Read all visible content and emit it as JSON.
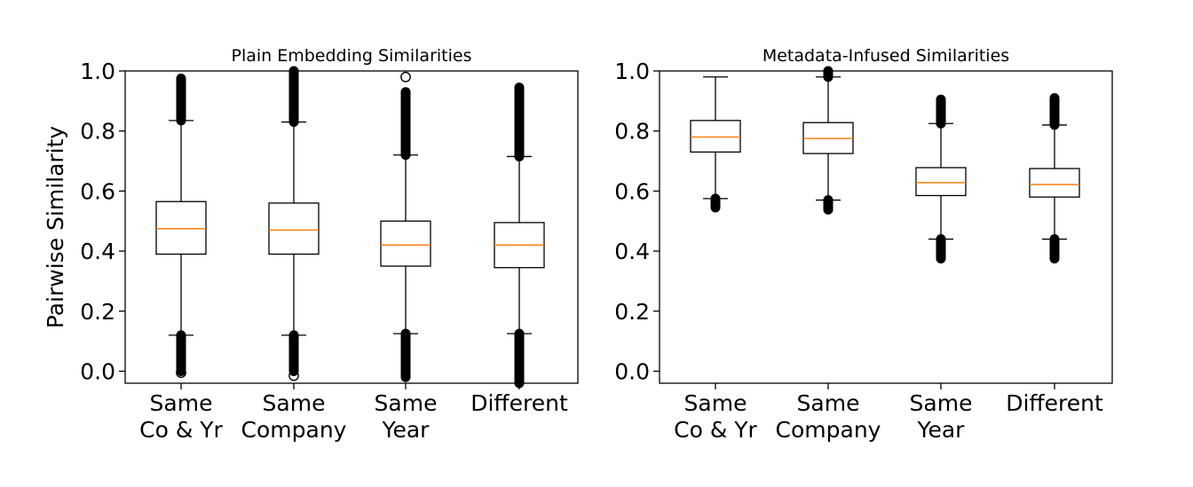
{
  "chart_data": [
    {
      "type": "box",
      "title": "Plain Embedding Similarities",
      "ylabel": "Pairwise Similarity",
      "xlabel": "",
      "ylim": [
        -0.04,
        1.0
      ],
      "yticks": [
        "0.0",
        "0.2",
        "0.4",
        "0.6",
        "0.8",
        "1.0"
      ],
      "categories": [
        [
          "Same",
          "Co & Yr"
        ],
        [
          "Same",
          "Company"
        ],
        [
          "Same",
          "Year"
        ],
        [
          "Different"
        ]
      ],
      "boxes": [
        {
          "whisker_low": 0.12,
          "q1": 0.39,
          "median": 0.475,
          "q3": 0.565,
          "whisker_high": 0.835,
          "flier_low": [
            0.12,
            0.0
          ],
          "flier_high": [
            0.835,
            0.975
          ],
          "flier_low_isolated": [
            -0.005
          ],
          "flier_high_isolated": []
        },
        {
          "whisker_low": 0.12,
          "q1": 0.39,
          "median": 0.47,
          "q3": 0.56,
          "whisker_high": 0.83,
          "flier_low": [
            0.12,
            0.0
          ],
          "flier_high": [
            0.83,
            1.0
          ],
          "flier_low_isolated": [
            -0.015
          ],
          "flier_high_isolated": []
        },
        {
          "whisker_low": 0.125,
          "q1": 0.35,
          "median": 0.42,
          "q3": 0.5,
          "whisker_high": 0.72,
          "flier_low": [
            0.125,
            -0.02
          ],
          "flier_high": [
            0.72,
            0.93
          ],
          "flier_low_isolated": [],
          "flier_high_isolated": [
            0.98
          ]
        },
        {
          "whisker_low": 0.125,
          "q1": 0.345,
          "median": 0.42,
          "q3": 0.495,
          "whisker_high": 0.715,
          "flier_low": [
            0.125,
            -0.04
          ],
          "flier_high": [
            0.715,
            0.945
          ],
          "flier_low_isolated": [],
          "flier_high_isolated": []
        }
      ]
    },
    {
      "type": "box",
      "title": "Metadata-Infused Similarities",
      "ylabel": "",
      "xlabel": "",
      "ylim": [
        -0.04,
        1.0
      ],
      "yticks": [
        "0.0",
        "0.2",
        "0.4",
        "0.6",
        "0.8",
        "1.0"
      ],
      "categories": [
        [
          "Same",
          "Co & Yr"
        ],
        [
          "Same",
          "Company"
        ],
        [
          "Same",
          "Year"
        ],
        [
          "Different"
        ]
      ],
      "boxes": [
        {
          "whisker_low": 0.575,
          "q1": 0.73,
          "median": 0.78,
          "q3": 0.835,
          "whisker_high": 0.98,
          "flier_low": [
            0.575,
            0.545
          ],
          "flier_high": [],
          "flier_low_isolated": [],
          "flier_high_isolated": []
        },
        {
          "whisker_low": 0.57,
          "q1": 0.725,
          "median": 0.775,
          "q3": 0.828,
          "whisker_high": 0.98,
          "flier_low": [
            0.57,
            0.538
          ],
          "flier_high": [
            0.98,
            1.0
          ],
          "flier_low_isolated": [],
          "flier_high_isolated": []
        },
        {
          "whisker_low": 0.44,
          "q1": 0.585,
          "median": 0.628,
          "q3": 0.678,
          "whisker_high": 0.825,
          "flier_low": [
            0.44,
            0.375
          ],
          "flier_high": [
            0.825,
            0.905
          ],
          "flier_low_isolated": [],
          "flier_high_isolated": []
        },
        {
          "whisker_low": 0.44,
          "q1": 0.58,
          "median": 0.622,
          "q3": 0.675,
          "whisker_high": 0.82,
          "flier_low": [
            0.44,
            0.375
          ],
          "flier_high": [
            0.82,
            0.91
          ],
          "flier_low_isolated": [],
          "flier_high_isolated": []
        }
      ]
    }
  ],
  "colors": {
    "box": "#000000",
    "median": "#ff7f0e",
    "background": "#ffffff"
  }
}
